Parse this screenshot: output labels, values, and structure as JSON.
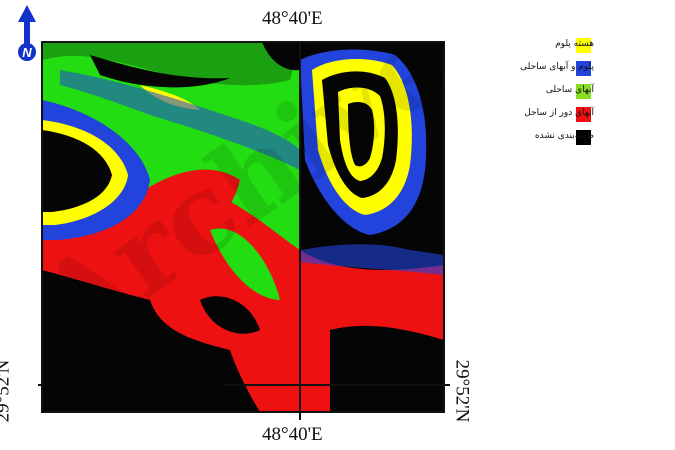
{
  "map": {
    "top_longitude": "48°40'E",
    "bottom_longitude": "48°40'E",
    "left_latitude": "29°52'N",
    "right_latitude": "29°52'N",
    "north_label": "N"
  },
  "legend": {
    "items": [
      {
        "label": "هسته پلوم",
        "color": "#ffff00"
      },
      {
        "label": "پلوم و آبهای ساحلی",
        "color": "#2244dd"
      },
      {
        "label": "آبهای ساحلی",
        "color": "#88dd22"
      },
      {
        "label": "آبهای دور از ساحل",
        "color": "#ee1111"
      },
      {
        "label": "طبقه‌بندی نشده",
        "color": "#000000"
      }
    ]
  },
  "watermark": "Archive"
}
